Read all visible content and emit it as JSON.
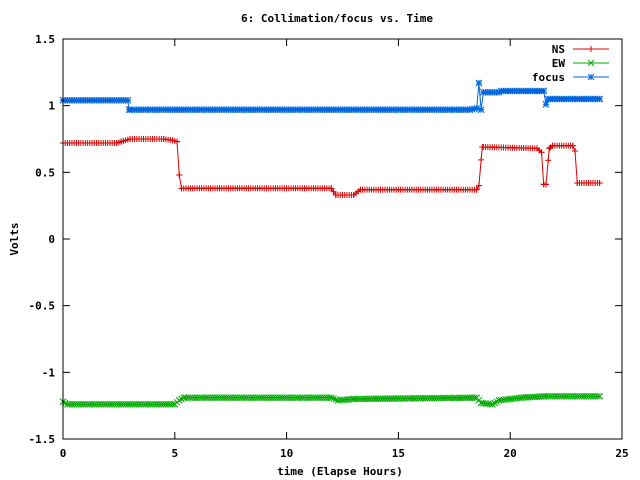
{
  "chart_data": {
    "type": "line",
    "title": "6: Collimation/focus vs. Time",
    "xlabel": "time (Elapse Hours)",
    "ylabel": "Volts",
    "xlim": [
      0,
      25
    ],
    "ylim": [
      -1.5,
      1.5
    ],
    "xticks": [
      0,
      5,
      10,
      15,
      20,
      25
    ],
    "xtick_labels": [
      "0",
      "5",
      "10",
      "15",
      "20",
      "25"
    ],
    "yticks": [
      -1.5,
      -1,
      -0.5,
      0,
      0.5,
      1,
      1.5
    ],
    "ytick_labels": [
      "-1.5",
      "-1",
      "-0.5",
      "0",
      "0.5",
      "1",
      "1.5"
    ],
    "grid": false,
    "legend_position": "top-right",
    "series": [
      {
        "name": "NS",
        "color": "#dd0000",
        "marker": "plus",
        "points": [
          [
            0,
            0.72
          ],
          [
            2.4,
            0.72
          ],
          [
            2.6,
            0.73
          ],
          [
            3.0,
            0.75
          ],
          [
            4.5,
            0.75
          ],
          [
            4.9,
            0.74
          ],
          [
            5.1,
            0.73
          ],
          [
            5.2,
            0.48
          ],
          [
            5.3,
            0.38
          ],
          [
            12.0,
            0.38
          ],
          [
            12.2,
            0.33
          ],
          [
            13.0,
            0.33
          ],
          [
            13.3,
            0.37
          ],
          [
            18.5,
            0.37
          ],
          [
            18.6,
            0.4
          ],
          [
            18.75,
            0.69
          ],
          [
            21.2,
            0.68
          ],
          [
            21.4,
            0.65
          ],
          [
            21.5,
            0.41
          ],
          [
            21.6,
            0.41
          ],
          [
            21.75,
            0.68
          ],
          [
            21.9,
            0.7
          ],
          [
            22.8,
            0.7
          ],
          [
            22.9,
            0.66
          ],
          [
            23.0,
            0.42
          ],
          [
            24.0,
            0.42
          ]
        ]
      },
      {
        "name": "EW",
        "color": "#00aa00",
        "marker": "cross",
        "points": [
          [
            0,
            -1.22
          ],
          [
            0.2,
            -1.24
          ],
          [
            5.0,
            -1.24
          ],
          [
            5.2,
            -1.21
          ],
          [
            5.4,
            -1.19
          ],
          [
            12.0,
            -1.19
          ],
          [
            12.3,
            -1.21
          ],
          [
            13.0,
            -1.2
          ],
          [
            18.5,
            -1.19
          ],
          [
            18.7,
            -1.23
          ],
          [
            19.2,
            -1.24
          ],
          [
            19.5,
            -1.21
          ],
          [
            20.5,
            -1.19
          ],
          [
            21.5,
            -1.18
          ],
          [
            24.0,
            -1.18
          ]
        ]
      },
      {
        "name": "focus",
        "color": "#0066dd",
        "marker": "star",
        "points": [
          [
            0,
            1.04
          ],
          [
            2.9,
            1.04
          ],
          [
            2.95,
            0.97
          ],
          [
            18.2,
            0.97
          ],
          [
            18.5,
            0.98
          ],
          [
            18.6,
            1.17
          ],
          [
            18.7,
            0.97
          ],
          [
            18.8,
            1.1
          ],
          [
            19.5,
            1.1
          ],
          [
            19.6,
            1.11
          ],
          [
            21.5,
            1.11
          ],
          [
            21.6,
            1.01
          ],
          [
            21.7,
            1.05
          ],
          [
            24.0,
            1.05
          ]
        ]
      }
    ]
  }
}
